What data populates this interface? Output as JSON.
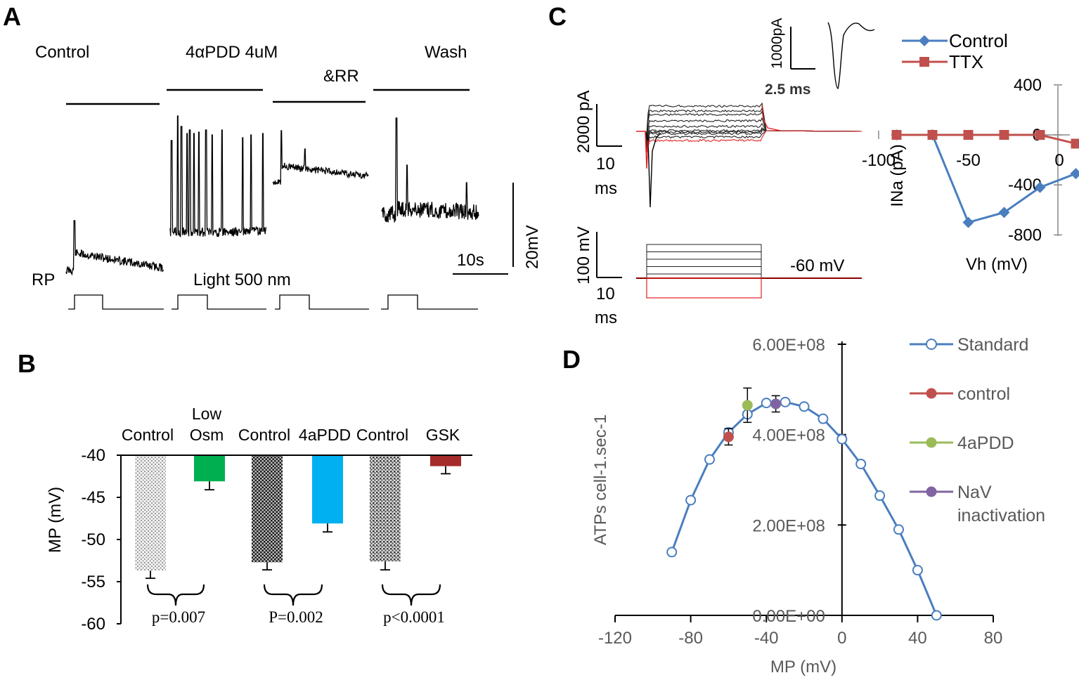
{
  "panels": {
    "a": {
      "letter": "A",
      "conditions": [
        "Control",
        "4αPDD 4uM",
        "&RR",
        "Wash"
      ],
      "rp_label": "RP",
      "light_label": "Light 500 nm",
      "scale_time": "10s",
      "scale_voltage": "20mV"
    },
    "b": {
      "letter": "B"
    },
    "c": {
      "letter": "C",
      "inset_scale_current": "1000pA",
      "inset_scale_time": "2.5 ms",
      "current_scale": "2000 pA",
      "current_time_num": "10",
      "current_time_unit": "ms",
      "voltage_scale": "100 mV",
      "voltage_time_num": "10",
      "voltage_time_unit": "ms",
      "holding_label": "-60 mV"
    },
    "d": {
      "letter": "D"
    }
  },
  "chart_data": [
    {
      "id": "B",
      "type": "bar",
      "ylabel": "MP (mV)",
      "ylim": [
        -60,
        -40
      ],
      "yticks": [
        -40,
        -45,
        -50,
        -55,
        -60
      ],
      "categories": [
        "Control",
        "Low Osm",
        "Control",
        "4aPDD",
        "Control",
        "GSK"
      ],
      "category_label_lines": [
        [
          "Control"
        ],
        [
          "Low",
          "Osm"
        ],
        [
          "Control"
        ],
        [
          "4aPDD"
        ],
        [
          "Control"
        ],
        [
          "GSK"
        ]
      ],
      "values": [
        -53.7,
        -43.1,
        -52.7,
        -48.1,
        -52.6,
        -41.3
      ],
      "errors": [
        0.9,
        1.0,
        0.9,
        1.0,
        1.0,
        0.9
      ],
      "colors": [
        "#d9d9d9",
        "#00b050",
        "#555555",
        "#00b0f0",
        "#7f7f7f",
        "#a52a2a"
      ],
      "patterned": [
        true,
        false,
        true,
        false,
        true,
        false
      ],
      "comparisons": [
        {
          "pair": [
            0,
            1
          ],
          "label": "p=0.007"
        },
        {
          "pair": [
            2,
            3
          ],
          "label": "P=0.002"
        },
        {
          "pair": [
            4,
            5
          ],
          "label": "p<0.0001"
        }
      ]
    },
    {
      "id": "C-IV",
      "type": "line",
      "xlabel": "Vh (mV)",
      "ylabel": "INa (pA)",
      "xlim": [
        -100,
        10
      ],
      "ylim": [
        -800,
        400
      ],
      "xticks": [
        -100,
        -50,
        0
      ],
      "yticks": [
        400,
        0,
        -400,
        -800
      ],
      "series": [
        {
          "name": "Control",
          "color": "#4a7ebf",
          "marker": "diamond",
          "x": [
            -90,
            -70,
            -50,
            -30,
            -10,
            10
          ],
          "y": [
            0,
            0,
            -700,
            -620,
            -420,
            -310
          ]
        },
        {
          "name": "TTX",
          "color": "#c0504d",
          "marker": "square",
          "x": [
            -90,
            -70,
            -50,
            -30,
            -10,
            10
          ],
          "y": [
            0,
            0,
            0,
            0,
            0,
            -70
          ]
        }
      ]
    },
    {
      "id": "D",
      "type": "line",
      "xlabel": "MP (mV)",
      "ylabel": "ATPs cell-1.sec-1",
      "xlim": [
        -120,
        80
      ],
      "ylim": [
        0,
        600000000
      ],
      "xticks": [
        -120,
        -80,
        -40,
        0,
        40,
        80
      ],
      "xtick_labels": [
        "-120",
        "-80",
        "-40",
        "0",
        "40",
        "80"
      ],
      "yticks": [
        0,
        200000000,
        400000000,
        600000000
      ],
      "ytick_labels": [
        "0.00E+00",
        "2.00E+08",
        "4.00E+08",
        "6.00E+08"
      ],
      "series": [
        {
          "name": "Standard",
          "color": "#4a7ebf",
          "marker": "open-circle",
          "x": [
            -90,
            -80,
            -70,
            -60,
            -50,
            -40,
            -30,
            -20,
            -10,
            0,
            10,
            20,
            30,
            40,
            50
          ],
          "y": [
            140000000,
            255000000,
            345000000,
            405000000,
            445000000,
            470000000,
            472000000,
            462000000,
            435000000,
            390000000,
            335000000,
            265000000,
            190000000,
            100000000,
            0
          ]
        },
        {
          "name": "control",
          "color": "#c0504d",
          "marker": "filled-circle",
          "x": [
            -60
          ],
          "y": [
            395000000
          ],
          "err": [
            18000000
          ]
        },
        {
          "name": "4aPDD",
          "color": "#9bbb59",
          "marker": "filled-circle",
          "x": [
            -50
          ],
          "y": [
            465000000
          ],
          "err": [
            38000000
          ]
        },
        {
          "name": "NaV inactivation",
          "color": "#8064a2",
          "marker": "filled-circle",
          "x": [
            -35
          ],
          "y": [
            468000000
          ],
          "err": [
            18000000
          ],
          "legend_lines": [
            "NaV",
            "inactivation"
          ]
        }
      ]
    }
  ]
}
